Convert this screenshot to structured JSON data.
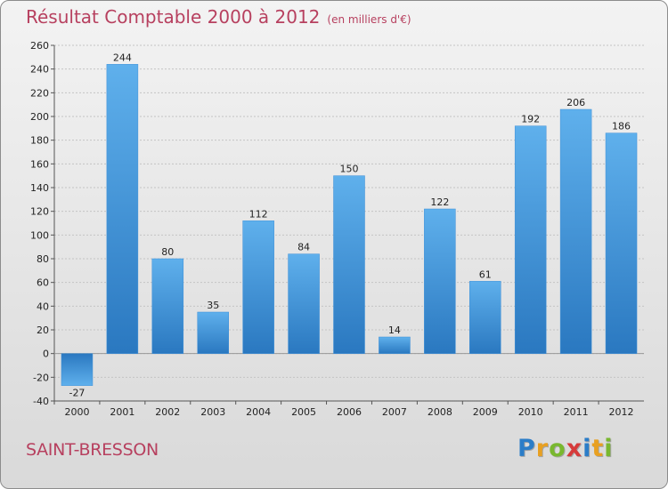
{
  "header": {
    "title": "Résultat Comptable 2000 à 2012",
    "subtitle": "(en milliers d'€)"
  },
  "footer": {
    "city": "SAINT-BRESSON",
    "logo_letters": [
      "P",
      "r",
      "o",
      "x",
      "i",
      "t",
      "i"
    ],
    "logo_colors": [
      "#2b7dc8",
      "#e8a021",
      "#79b82f",
      "#d63a3a",
      "#2b7dc8",
      "#e8a021",
      "#79b82f"
    ]
  },
  "chart_data": {
    "type": "bar",
    "title": "Résultat Comptable 2000 à 2012",
    "subtitle": "(en milliers d'€)",
    "xlabel": "",
    "ylabel": "",
    "categories": [
      "2000",
      "2001",
      "2002",
      "2003",
      "2004",
      "2005",
      "2006",
      "2007",
      "2008",
      "2009",
      "2010",
      "2011",
      "2012"
    ],
    "values": [
      -27,
      244,
      80,
      35,
      112,
      84,
      150,
      14,
      122,
      61,
      192,
      206,
      186
    ],
    "ylim": [
      -40,
      260
    ],
    "yticks": [
      -40,
      -20,
      0,
      20,
      40,
      60,
      80,
      100,
      120,
      140,
      160,
      180,
      200,
      220,
      240,
      260
    ],
    "grid": true,
    "bar_color": "#4a9be0"
  }
}
